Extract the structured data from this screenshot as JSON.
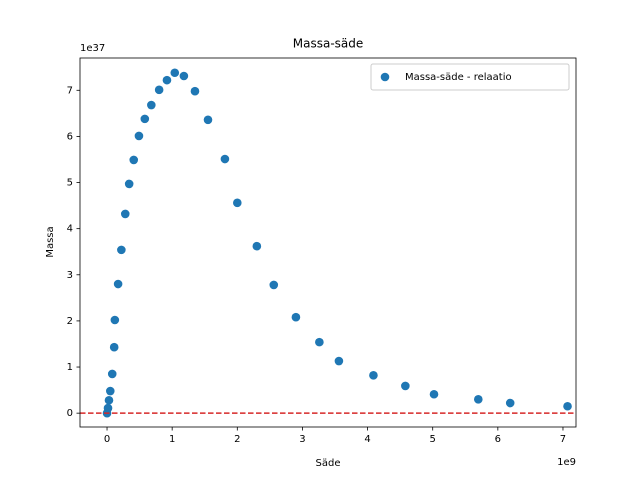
{
  "chart_data": {
    "type": "scatter",
    "title": "Massa-säde",
    "xlabel": "Säde",
    "ylabel": "Massa",
    "x_offset_label": "1e9",
    "y_offset_label": "1e37",
    "series": [
      {
        "name": "Massa-säde - relaatio",
        "color": "#1f77b4",
        "x": [
          0,
          0.015,
          0.03,
          0.05,
          0.08,
          0.11,
          0.12,
          0.17,
          0.22,
          0.28,
          0.34,
          0.41,
          0.49,
          0.58,
          0.68,
          0.8,
          0.92,
          1.04,
          1.18,
          1.35,
          1.55,
          1.81,
          2.0,
          2.3,
          2.56,
          2.9,
          3.26,
          3.56,
          4.09,
          4.58,
          5.02,
          5.7,
          6.19,
          7.07
        ],
        "values": [
          0,
          0.11,
          0.28,
          0.48,
          0.85,
          1.43,
          2.02,
          2.8,
          3.54,
          4.32,
          4.97,
          5.49,
          6.01,
          6.38,
          6.68,
          7.01,
          7.22,
          7.38,
          7.31,
          6.98,
          6.36,
          5.51,
          4.56,
          3.62,
          2.78,
          2.08,
          1.54,
          1.13,
          0.82,
          0.59,
          0.41,
          0.3,
          0.22,
          0.15
        ]
      }
    ],
    "hline": 0,
    "hline_color": "#d62728",
    "xlim": [
      -0.415,
      7.2
    ],
    "xticks": [
      0,
      1,
      2,
      3,
      4,
      5,
      6,
      7
    ],
    "ylim": [
      -0.3,
      7.7
    ],
    "yticks": [
      0,
      1,
      2,
      3,
      4,
      5,
      6,
      7
    ],
    "legend": "upper right"
  }
}
